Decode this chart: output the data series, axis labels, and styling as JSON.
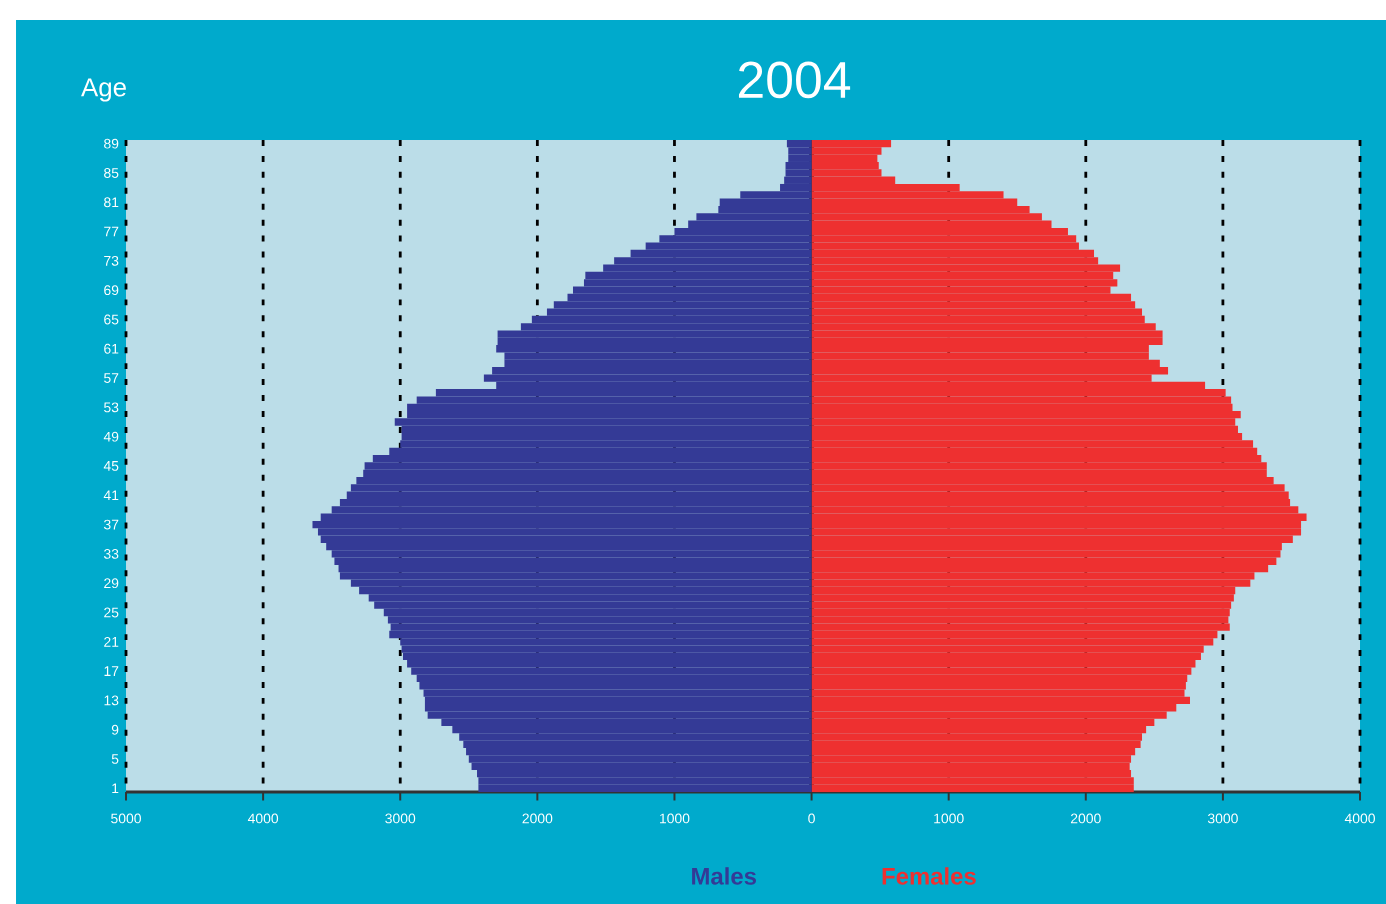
{
  "chart_data": {
    "type": "bar",
    "orientation": "horizontal",
    "title": "2004",
    "ylabel": "Age",
    "categories": [
      "89",
      null,
      null,
      null,
      "85",
      null,
      null,
      null,
      "81",
      null,
      null,
      null,
      "77",
      null,
      null,
      null,
      "73",
      null,
      null,
      null,
      "69",
      null,
      null,
      null,
      "65",
      null,
      null,
      null,
      "61",
      null,
      null,
      null,
      "57",
      null,
      null,
      null,
      "53",
      null,
      null,
      null,
      "49",
      null,
      null,
      null,
      "45",
      null,
      null,
      null,
      "41",
      null,
      null,
      null,
      "37",
      null,
      null,
      null,
      "33",
      null,
      null,
      null,
      "29",
      null,
      null,
      null,
      "25",
      null,
      null,
      null,
      "21",
      null,
      null,
      null,
      "17",
      null,
      null,
      null,
      "13",
      null,
      null,
      null,
      "9",
      null,
      null,
      null,
      "5",
      null,
      null,
      null,
      "1"
    ],
    "series": [
      {
        "name": "Males",
        "color": "#343a96",
        "values": [
          -180,
          -170,
          -170,
          -190,
          -190,
          -200,
          -230,
          -520,
          -670,
          -680,
          -840,
          -900,
          -1000,
          -1110,
          -1210,
          -1320,
          -1440,
          -1520,
          -1650,
          -1660,
          -1740,
          -1780,
          -1880,
          -1930,
          -2040,
          -2120,
          -2290,
          -2290,
          -2300,
          -2240,
          -2240,
          -2330,
          -2390,
          -2300,
          -2740,
          -2880,
          -2950,
          -2950,
          -3040,
          -2990,
          -2990,
          -3000,
          -3080,
          -3200,
          -3260,
          -3270,
          -3320,
          -3360,
          -3390,
          -3440,
          -3500,
          -3580,
          -3640,
          -3600,
          -3580,
          -3540,
          -3500,
          -3480,
          -3450,
          -3440,
          -3360,
          -3300,
          -3230,
          -3190,
          -3120,
          -3090,
          -3070,
          -3080,
          -3000,
          -2990,
          -2980,
          -2950,
          -2920,
          -2880,
          -2860,
          -2830,
          -2820,
          -2820,
          -2800,
          -2700,
          -2620,
          -2570,
          -2540,
          -2520,
          -2500,
          -2480,
          -2440,
          -2430,
          -2430
        ]
      },
      {
        "name": "Females",
        "color": "#ee3030",
        "values": [
          580,
          510,
          480,
          490,
          510,
          610,
          1080,
          1400,
          1500,
          1590,
          1680,
          1750,
          1870,
          1930,
          1950,
          2060,
          2090,
          2250,
          2200,
          2230,
          2180,
          2330,
          2360,
          2410,
          2430,
          2510,
          2560,
          2560,
          2460,
          2460,
          2540,
          2600,
          2480,
          2870,
          3020,
          3060,
          3070,
          3130,
          3090,
          3110,
          3140,
          3220,
          3250,
          3280,
          3320,
          3320,
          3370,
          3450,
          3480,
          3490,
          3550,
          3610,
          3570,
          3570,
          3510,
          3430,
          3420,
          3390,
          3330,
          3230,
          3200,
          3090,
          3080,
          3060,
          3050,
          3040,
          3050,
          2960,
          2930,
          2860,
          2840,
          2800,
          2770,
          2740,
          2730,
          2720,
          2760,
          2660,
          2590,
          2500,
          2440,
          2410,
          2400,
          2360,
          2330,
          2320,
          2330,
          2350,
          2350
        ]
      }
    ],
    "xlim": [
      -5000,
      4000
    ],
    "xticks": [
      {
        "value": -5000,
        "label": "5000"
      },
      {
        "value": -4000,
        "label": "4000"
      },
      {
        "value": -3000,
        "label": "3000"
      },
      {
        "value": -2000,
        "label": "2000"
      },
      {
        "value": -1000,
        "label": "1000"
      },
      0,
      1000,
      2000,
      3000,
      4000
    ],
    "stacked": true,
    "grid": "x"
  }
}
